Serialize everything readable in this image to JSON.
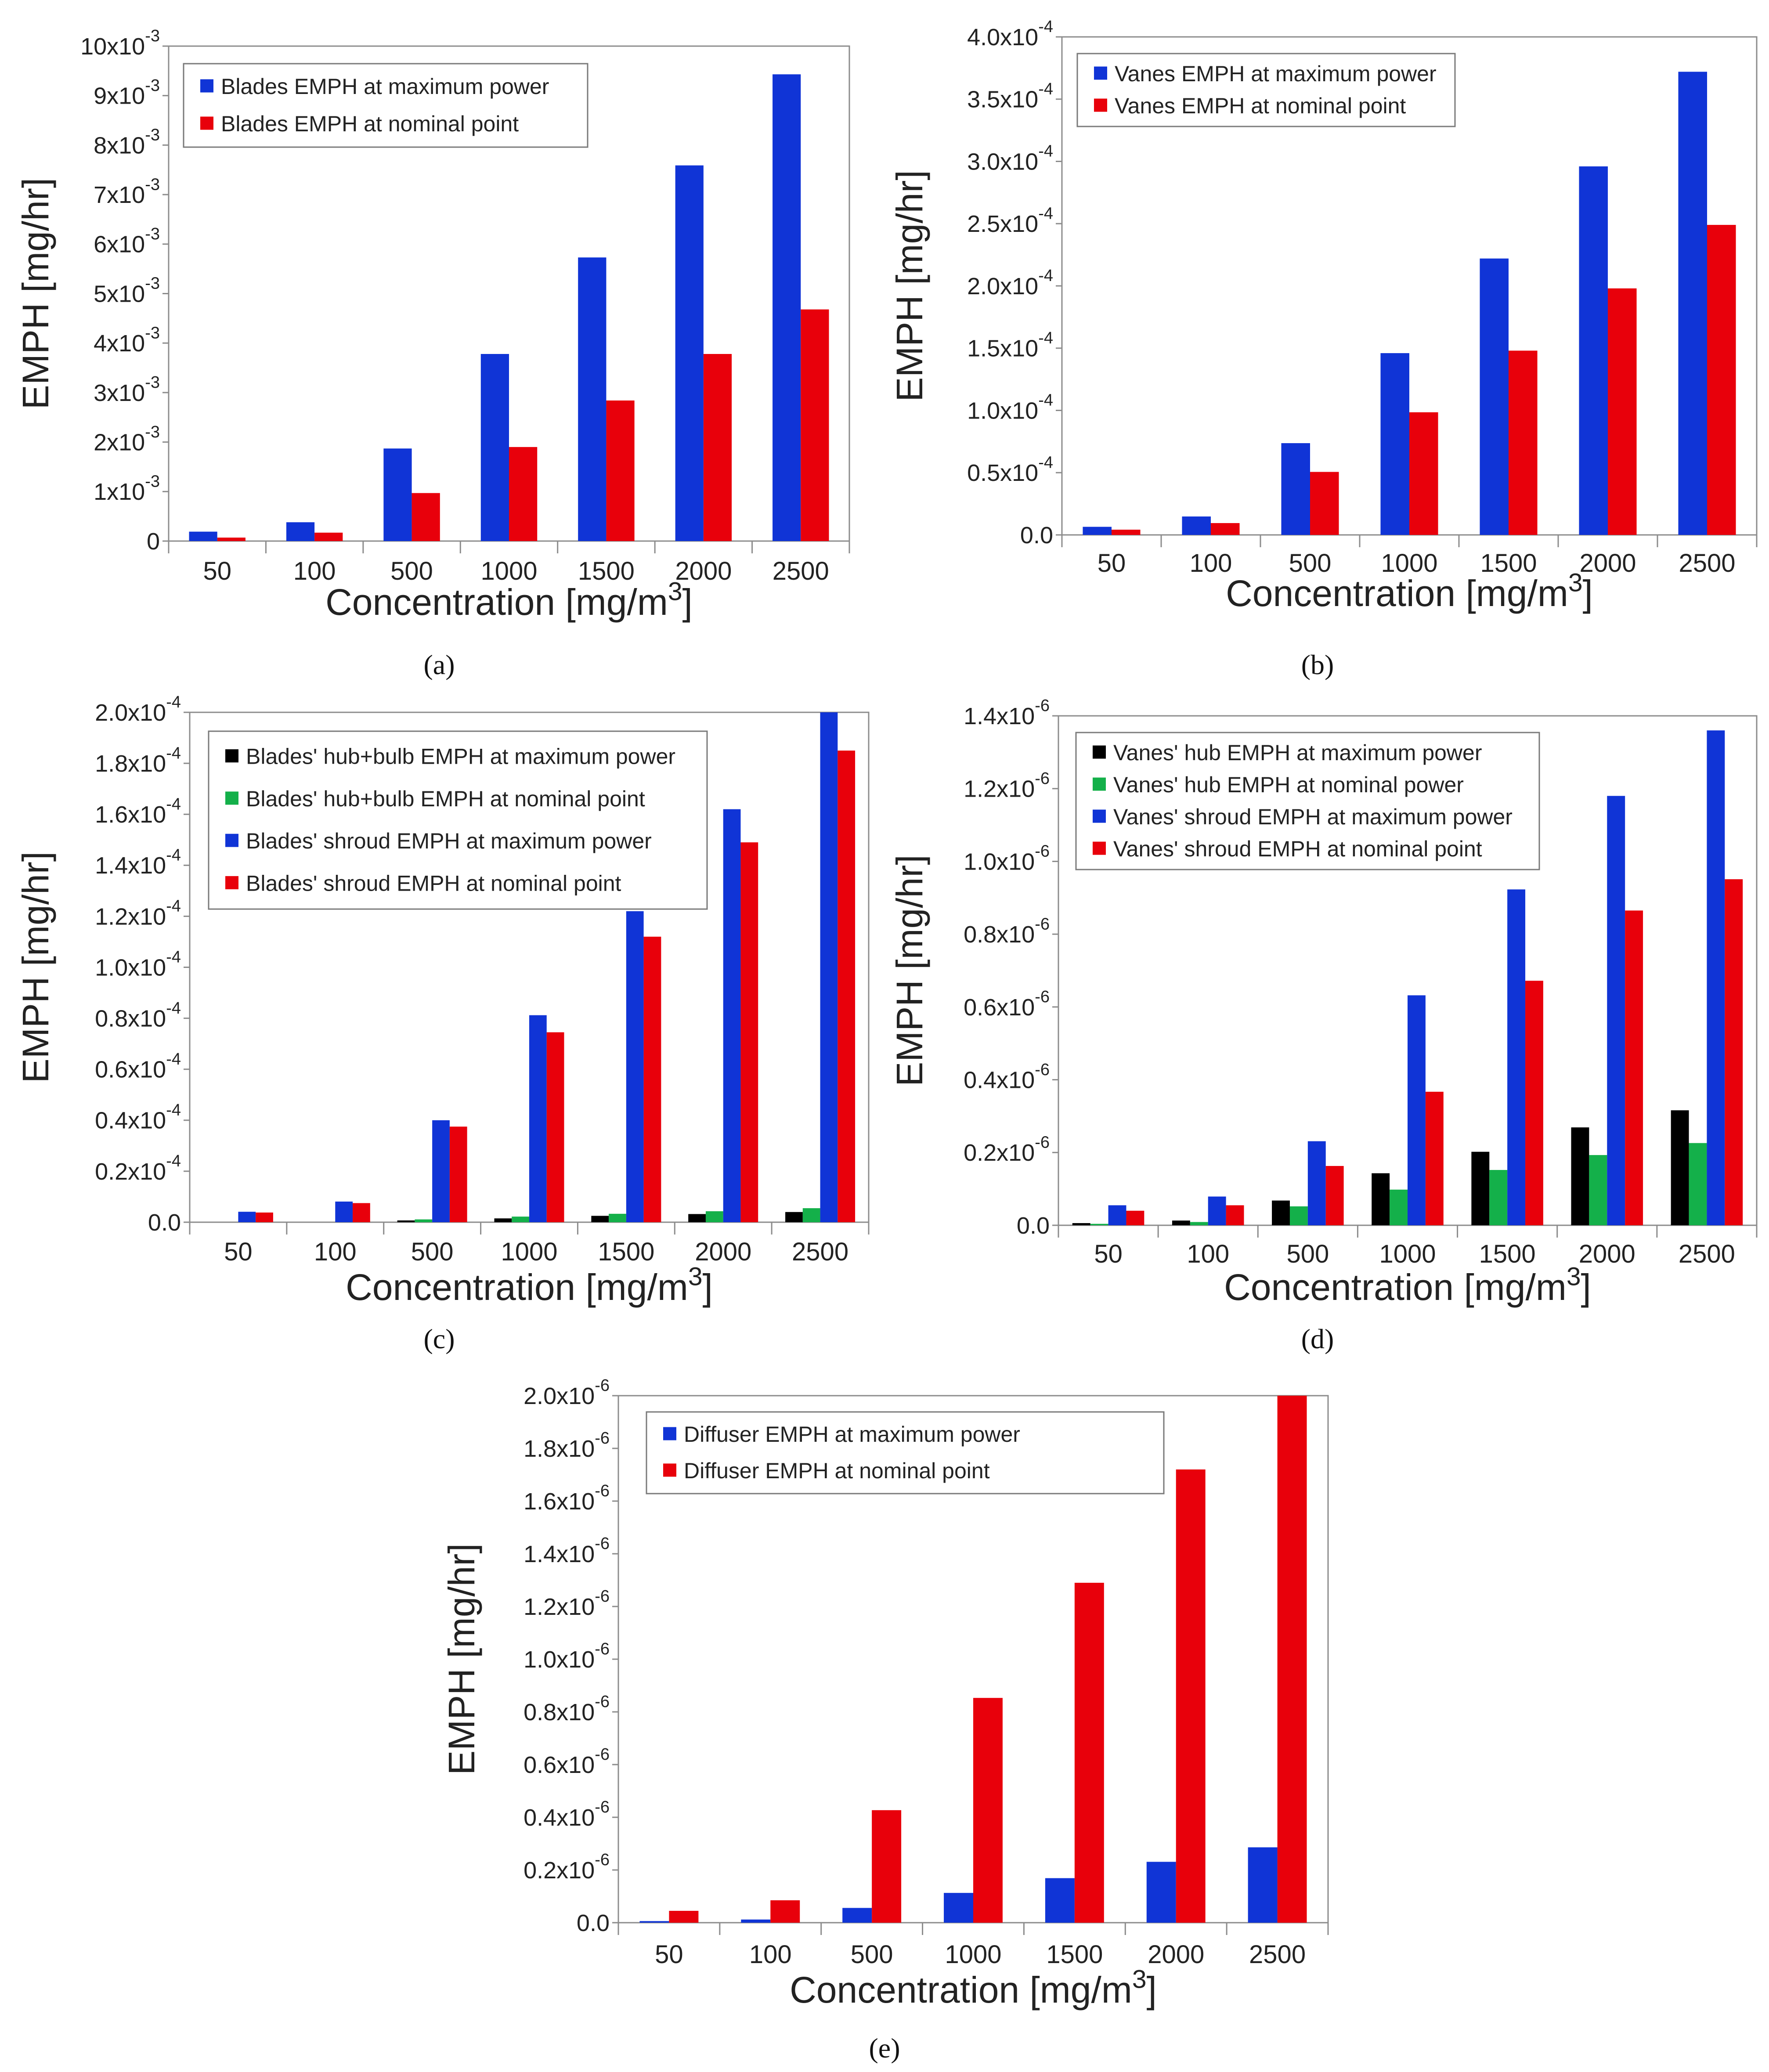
{
  "x_tick_labels": [
    "50",
    "100",
    "500",
    "1000",
    "1500",
    "2000",
    "2500"
  ],
  "colors": {
    "blue": "#1034D6",
    "red": "#E8000B",
    "black": "#000000",
    "green": "#14B04A"
  },
  "chart_data": [
    {
      "id": "a",
      "caption": "(a)",
      "type": "bar",
      "xlabel": "Concentration [mg/m",
      "xlabel_sup": "3",
      "xlabel_tail": "]",
      "ylabel": "EMPH [mg/hr]",
      "ylim": [
        0,
        0.01
      ],
      "yticks": [
        {
          "v": 0,
          "m": "0",
          "e": ""
        },
        {
          "v": 0.001,
          "m": "1x10",
          "e": "-3"
        },
        {
          "v": 0.002,
          "m": "2x10",
          "e": "-3"
        },
        {
          "v": 0.003,
          "m": "3x10",
          "e": "-3"
        },
        {
          "v": 0.004,
          "m": "4x10",
          "e": "-3"
        },
        {
          "v": 0.005,
          "m": "5x10",
          "e": "-3"
        },
        {
          "v": 0.006,
          "m": "6x10",
          "e": "-3"
        },
        {
          "v": 0.007,
          "m": "7x10",
          "e": "-3"
        },
        {
          "v": 0.008,
          "m": "8x10",
          "e": "-3"
        },
        {
          "v": 0.009,
          "m": "9x10",
          "e": "-3"
        },
        {
          "v": 0.01,
          "m": "10x10",
          "e": "-3"
        }
      ],
      "categories": [
        "50",
        "100",
        "500",
        "1000",
        "1500",
        "2000",
        "2500"
      ],
      "legend_position": "top-left",
      "series": [
        {
          "name": "Blades EMPH at maximum power",
          "color": "blue",
          "values": [
            0.00019,
            0.00038,
            0.00187,
            0.00378,
            0.00573,
            0.00759,
            0.00943
          ]
        },
        {
          "name": "Blades EMPH at nominal point",
          "color": "red",
          "values": [
            7e-05,
            0.00017,
            0.00097,
            0.0019,
            0.00284,
            0.00378,
            0.00468
          ]
        }
      ]
    },
    {
      "id": "b",
      "caption": "(b)",
      "type": "bar",
      "xlabel": "Concentration [mg/m",
      "xlabel_sup": "3",
      "xlabel_tail": "]",
      "ylabel": "EMPH [mg/hr]",
      "ylim": [
        0,
        0.0004
      ],
      "yticks": [
        {
          "v": 0,
          "m": "0.0",
          "e": ""
        },
        {
          "v": 5e-05,
          "m": "0.5x10",
          "e": "-4"
        },
        {
          "v": 0.0001,
          "m": "1.0x10",
          "e": "-4"
        },
        {
          "v": 0.00015,
          "m": "1.5x10",
          "e": "-4"
        },
        {
          "v": 0.0002,
          "m": "2.0x10",
          "e": "-4"
        },
        {
          "v": 0.00025,
          "m": "2.5x10",
          "e": "-4"
        },
        {
          "v": 0.0003,
          "m": "3.0x10",
          "e": "-4"
        },
        {
          "v": 0.00035,
          "m": "3.5x10",
          "e": "-4"
        },
        {
          "v": 0.0004,
          "m": "4.0x10",
          "e": "-4"
        }
      ],
      "categories": [
        "50",
        "100",
        "500",
        "1000",
        "1500",
        "2000",
        "2500"
      ],
      "legend_position": "top-left",
      "series": [
        {
          "name": "Vanes EMPH at maximum power",
          "color": "blue",
          "values": [
            6.5e-06,
            1.48e-05,
            7.37e-05,
            0.000146,
            0.000222,
            0.000296,
            0.000372
          ]
        },
        {
          "name": "Vanes EMPH at nominal point",
          "color": "red",
          "values": [
            4.2e-06,
            9.5e-06,
            5.06e-05,
            9.85e-05,
            0.000148,
            0.000198,
            0.000249
          ]
        }
      ]
    },
    {
      "id": "c",
      "caption": "(c)",
      "type": "bar",
      "xlabel": "Concentration [mg/m",
      "xlabel_sup": "3",
      "xlabel_tail": "]",
      "ylabel": "EMPH [mg/hr]",
      "ylim": [
        0,
        0.0002
      ],
      "yticks": [
        {
          "v": 0,
          "m": "0.0",
          "e": ""
        },
        {
          "v": 2e-05,
          "m": "0.2x10",
          "e": "-4"
        },
        {
          "v": 4e-05,
          "m": "0.4x10",
          "e": "-4"
        },
        {
          "v": 6e-05,
          "m": "0.6x10",
          "e": "-4"
        },
        {
          "v": 8e-05,
          "m": "0.8x10",
          "e": "-4"
        },
        {
          "v": 0.0001,
          "m": "1.0x10",
          "e": "-4"
        },
        {
          "v": 0.00012,
          "m": "1.2x10",
          "e": "-4"
        },
        {
          "v": 0.00014,
          "m": "1.4x10",
          "e": "-4"
        },
        {
          "v": 0.00016,
          "m": "1.6x10",
          "e": "-4"
        },
        {
          "v": 0.00018,
          "m": "1.8x10",
          "e": "-4"
        },
        {
          "v": 0.0002,
          "m": "2.0x10",
          "e": "-4"
        }
      ],
      "categories": [
        "50",
        "100",
        "500",
        "1000",
        "1500",
        "2000",
        "2500"
      ],
      "legend_position": "top-left",
      "series": [
        {
          "name": "Blades' hub+bulb EMPH at maximum power",
          "color": "black",
          "values": [
            0,
            0,
            7e-07,
            1.5e-06,
            2.5e-06,
            3.2e-06,
            4e-06
          ]
        },
        {
          "name": "Blades' hub+bulb EMPH at nominal point",
          "color": "green",
          "values": [
            0,
            0,
            1.1e-06,
            2.2e-06,
            3.3e-06,
            4.3e-06,
            5.5e-06
          ]
        },
        {
          "name": "Blades' shroud EMPH at maximum power",
          "color": "blue",
          "values": [
            4.1e-06,
            8.1e-06,
            4e-05,
            8.12e-05,
            0.000122,
            0.000162,
            0.0002
          ]
        },
        {
          "name": "Blades' shroud EMPH at nominal point",
          "color": "red",
          "values": [
            3.8e-06,
            7.5e-06,
            3.75e-05,
            7.45e-05,
            0.000112,
            0.000149,
            0.000185
          ]
        }
      ]
    },
    {
      "id": "d",
      "caption": "(d)",
      "type": "bar",
      "xlabel": "Concentration [mg/m",
      "xlabel_sup": "3",
      "xlabel_tail": "]",
      "ylabel": "EMPH [mg/hr]",
      "ylim": [
        0,
        1.4e-06
      ],
      "yticks": [
        {
          "v": 0,
          "m": "0.0",
          "e": ""
        },
        {
          "v": 2e-07,
          "m": "0.2x10",
          "e": "-6"
        },
        {
          "v": 4e-07,
          "m": "0.4x10",
          "e": "-6"
        },
        {
          "v": 6e-07,
          "m": "0.6x10",
          "e": "-6"
        },
        {
          "v": 8e-07,
          "m": "0.8x10",
          "e": "-6"
        },
        {
          "v": 1e-06,
          "m": "1.0x10",
          "e": "-6"
        },
        {
          "v": 1.2e-06,
          "m": "1.2x10",
          "e": "-6"
        },
        {
          "v": 1.4e-06,
          "m": "1.4x10",
          "e": "-6"
        }
      ],
      "categories": [
        "50",
        "100",
        "500",
        "1000",
        "1500",
        "2000",
        "2500"
      ],
      "legend_position": "top-left",
      "series": [
        {
          "name": "Vanes' hub EMPH at maximum power",
          "color": "black",
          "values": [
            6e-09,
            1.3e-08,
            6.8e-08,
            1.43e-07,
            2.02e-07,
            2.69e-07,
            3.16e-07
          ]
        },
        {
          "name": "Vanes' hub EMPH at nominal power",
          "color": "green",
          "values": [
            4e-09,
            9e-09,
            5.2e-08,
            9.8e-08,
            1.52e-07,
            1.93e-07,
            2.26e-07
          ]
        },
        {
          "name": "Vanes' shroud EMPH at maximum power",
          "color": "blue",
          "values": [
            5.5e-08,
            7.9e-08,
            2.31e-07,
            6.32e-07,
            9.23e-07,
            1.18e-06,
            1.36e-06
          ]
        },
        {
          "name": "Vanes' shroud EMPH at nominal point",
          "color": "red",
          "values": [
            4e-08,
            5.5e-08,
            1.63e-07,
            3.67e-07,
            6.72e-07,
            8.65e-07,
            9.51e-07
          ]
        }
      ]
    },
    {
      "id": "e",
      "caption": "(e)",
      "type": "bar",
      "xlabel": "Concentration [mg/m",
      "xlabel_sup": "3",
      "xlabel_tail": "]",
      "ylabel": "EMPH [mg/hr]",
      "ylim": [
        0,
        2e-06
      ],
      "yticks": [
        {
          "v": 0,
          "m": "0.0",
          "e": ""
        },
        {
          "v": 2e-07,
          "m": "0.2x10",
          "e": "-6"
        },
        {
          "v": 4e-07,
          "m": "0.4x10",
          "e": "-6"
        },
        {
          "v": 6e-07,
          "m": "0.6x10",
          "e": "-6"
        },
        {
          "v": 8e-07,
          "m": "0.8x10",
          "e": "-6"
        },
        {
          "v": 1e-06,
          "m": "1.0x10",
          "e": "-6"
        },
        {
          "v": 1.2e-06,
          "m": "1.2x10",
          "e": "-6"
        },
        {
          "v": 1.4e-06,
          "m": "1.4x10",
          "e": "-6"
        },
        {
          "v": 1.6e-06,
          "m": "1.6x10",
          "e": "-6"
        },
        {
          "v": 1.8e-06,
          "m": "1.8x10",
          "e": "-6"
        },
        {
          "v": 2e-06,
          "m": "2.0x10",
          "e": "-6"
        }
      ],
      "categories": [
        "50",
        "100",
        "500",
        "1000",
        "1500",
        "2000",
        "2500"
      ],
      "legend_position": "top-left",
      "series": [
        {
          "name": "Diffuser EMPH at maximum power",
          "color": "blue",
          "values": [
            6e-09,
            1.2e-08,
            5.6e-08,
            1.13e-07,
            1.69e-07,
            2.31e-07,
            2.86e-07
          ]
        },
        {
          "name": "Diffuser EMPH at nominal point",
          "color": "red",
          "values": [
            4.5e-08,
            8.5e-08,
            4.27e-07,
            8.53e-07,
            1.29e-06,
            1.72e-06,
            2e-06
          ]
        }
      ]
    }
  ]
}
